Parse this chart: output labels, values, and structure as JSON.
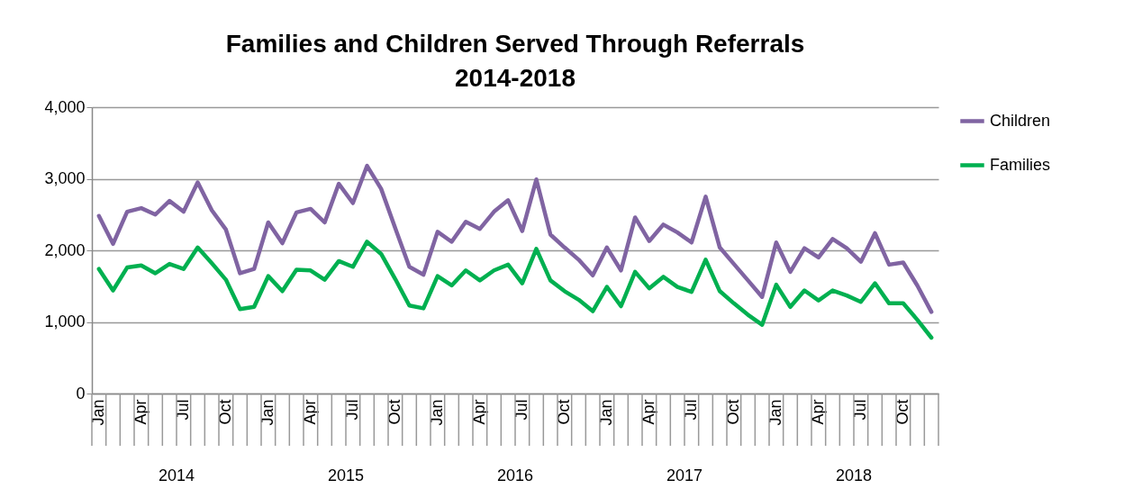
{
  "chart_data": {
    "type": "line",
    "title": "Families and Children Served Through Referrals 2014-2018",
    "categories": [
      "Jan",
      null,
      null,
      "Apr",
      null,
      null,
      "Jul",
      null,
      null,
      "Oct",
      null,
      null,
      "Jan",
      null,
      null,
      "Apr",
      null,
      null,
      "Jul",
      null,
      null,
      "Oct",
      null,
      null,
      "Jan",
      null,
      null,
      "Apr",
      null,
      null,
      "Jul",
      null,
      null,
      "Oct",
      null,
      null,
      "Jan",
      null,
      null,
      "Apr",
      null,
      null,
      "Jul",
      null,
      null,
      "Oct",
      null,
      null,
      "Jan",
      null,
      null,
      "Apr",
      null,
      null,
      "Jul",
      null,
      null,
      "Oct",
      null,
      null
    ],
    "series": [
      {
        "name": "Children",
        "color": "#8064a2",
        "values": [
          2480,
          2090,
          2540,
          2590,
          2500,
          2690,
          2540,
          2950,
          2560,
          2290,
          1680,
          1740,
          2390,
          2100,
          2530,
          2580,
          2390,
          2930,
          2660,
          3180,
          2860,
          2310,
          1770,
          1660,
          2260,
          2120,
          2400,
          2300,
          2540,
          2700,
          2270,
          2990,
          2220,
          2040,
          1870,
          1650,
          2040,
          1720,
          2460,
          2130,
          2360,
          2250,
          2110,
          2750,
          2040,
          1810,
          1580,
          1350,
          2110,
          1700,
          2030,
          1900,
          2160,
          2030,
          1840,
          2240,
          1800,
          1830,
          1510,
          1140
        ]
      },
      {
        "name": "Families",
        "color": "#00b050",
        "values": [
          1740,
          1440,
          1760,
          1790,
          1680,
          1810,
          1740,
          2040,
          1820,
          1590,
          1180,
          1210,
          1640,
          1430,
          1730,
          1720,
          1590,
          1850,
          1770,
          2120,
          1950,
          1600,
          1230,
          1190,
          1640,
          1510,
          1720,
          1580,
          1720,
          1800,
          1540,
          2020,
          1580,
          1430,
          1310,
          1150,
          1490,
          1220,
          1700,
          1470,
          1630,
          1490,
          1420,
          1870,
          1430,
          1260,
          1100,
          960,
          1520,
          1210,
          1440,
          1300,
          1440,
          1370,
          1280,
          1540,
          1260,
          1260,
          1030,
          780
        ]
      }
    ],
    "ylim": [
      0,
      4000
    ],
    "yticks": [
      0,
      {
        "value": 1000,
        "label": "1,000"
      },
      {
        "value": 2000,
        "label": "2,000"
      },
      {
        "value": 3000,
        "label": "3,000"
      },
      {
        "value": 4000,
        "label": "4,000"
      }
    ],
    "grid": "y",
    "legend": "right",
    "line_style": "solid",
    "marker": "none",
    "annotations": [
      "2014",
      "2015",
      "2016",
      "2017",
      "2018"
    ]
  }
}
